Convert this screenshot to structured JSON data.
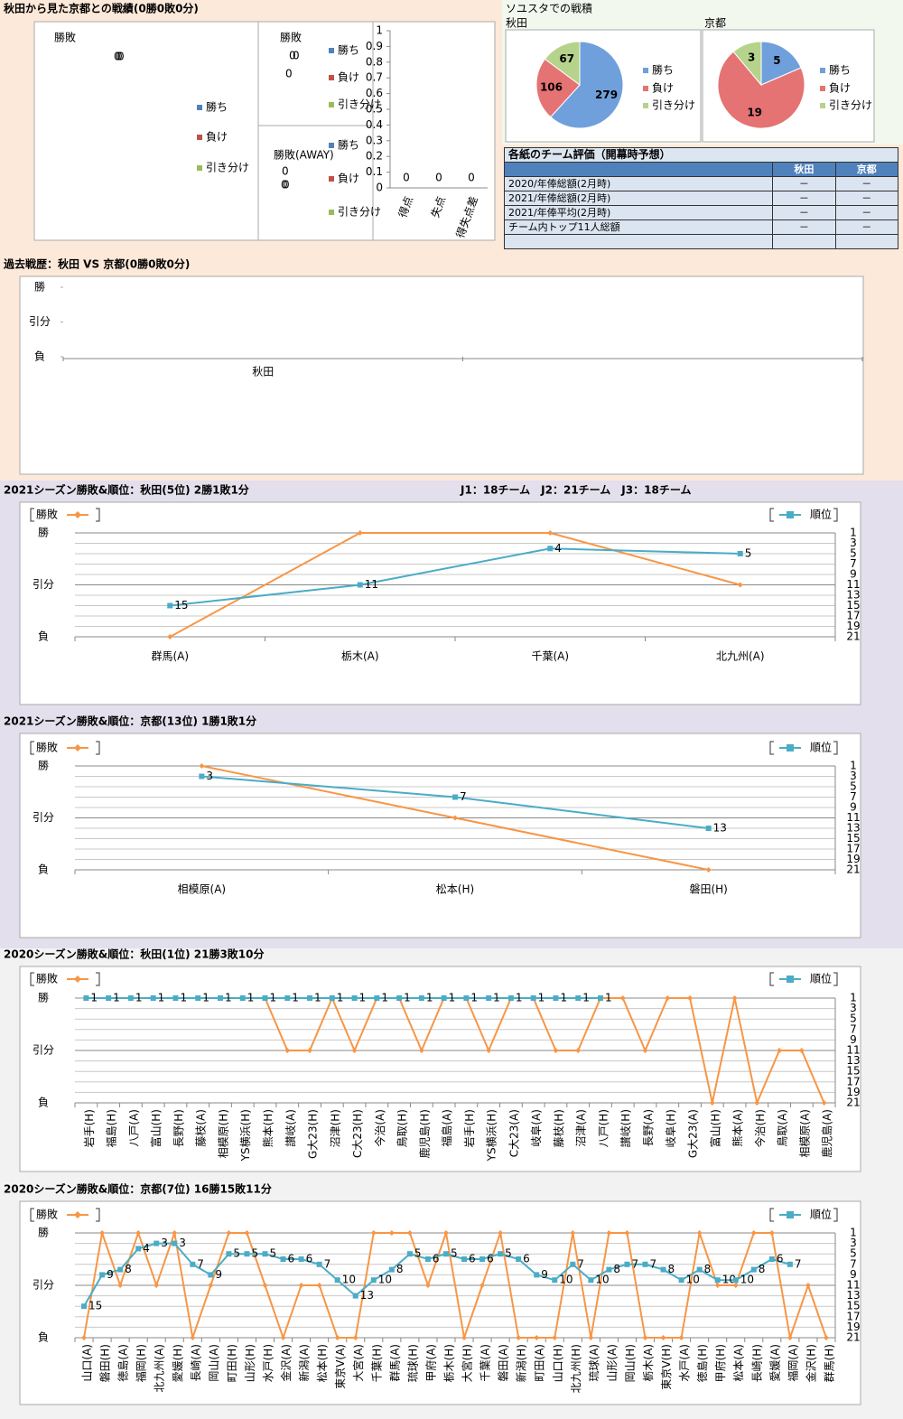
{
  "headings": {
    "main": "秋田から見た京都との戦績(0勝0敗0分)",
    "stadium": "ソユスタでの戦積",
    "teams": "J1：18チーム　J2：21チーム　J3：18チーム"
  },
  "table": {
    "title": "各紙のチーム評価（開幕時予想）",
    "columns": [
      "秋田",
      "京都"
    ],
    "rows": [
      [
        "2020/年俸総額(2月時)",
        "－",
        "－"
      ],
      [
        "2021/年俸総額(2月時)",
        "－",
        "－"
      ],
      [
        "2021/年俸平均(2月時)",
        "－",
        "－"
      ],
      [
        "チーム内トップ11人総額",
        "－",
        "－"
      ]
    ]
  },
  "chart_data": [
    {
      "type": "pie",
      "title": "勝敗",
      "categories": [
        "勝ち",
        "負け",
        "引き分け"
      ],
      "values": [
        0,
        0,
        0
      ],
      "colors": [
        "#4f81bd",
        "#c0504d",
        "#9bbb59"
      ],
      "legend": "right"
    },
    {
      "type": "pie",
      "title": "勝敗",
      "categories": [
        "勝ち",
        "負け",
        "引き分け"
      ],
      "values": [
        0,
        0,
        0
      ],
      "colors": [
        "#4f81bd",
        "#c0504d",
        "#9bbb59"
      ],
      "legend": "right"
    },
    {
      "type": "pie",
      "title": "勝敗(AWAY)",
      "categories": [
        "勝ち",
        "負け",
        "引き分け"
      ],
      "values": [
        0,
        0,
        0
      ],
      "colors": [
        "#4f81bd",
        "#c0504d",
        "#9bbb59"
      ],
      "legend": "right"
    },
    {
      "type": "bar",
      "categories": [
        "得点",
        "失点",
        "得失点差"
      ],
      "values": [
        0,
        0,
        0
      ],
      "color": "#4f81bd",
      "ylim": [
        0,
        1
      ],
      "yticks": [
        0,
        0.1,
        0.2,
        0.3,
        0.4,
        0.5,
        0.6,
        0.7,
        0.8,
        0.9,
        1
      ]
    },
    {
      "type": "pie",
      "title": "秋田",
      "categories": [
        "勝ち",
        "負け",
        "引き分け"
      ],
      "values": [
        279,
        106,
        67
      ],
      "colors": [
        "#6fa0dc",
        "#e57373",
        "#b5d38b"
      ],
      "legend": "right"
    },
    {
      "type": "pie",
      "title": "京都",
      "categories": [
        "勝ち",
        "負け",
        "引き分け"
      ],
      "values": [
        5,
        19,
        3
      ],
      "colors": [
        "#6fa0dc",
        "#e57373",
        "#b5d38b"
      ],
      "legend": "right"
    },
    {
      "type": "line",
      "title": "過去戦歴：秋田 VS 京都(0勝0敗0分)",
      "categories": [
        "秋田",
        null
      ],
      "series": [
        {
          "values": [
            null,
            null
          ]
        }
      ],
      "ylim": [
        -1,
        1
      ],
      "yticks": [
        {
          "value": 1,
          "label": "勝"
        },
        {
          "value": 0,
          "label": "引分"
        },
        {
          "value": -1,
          "label": "負"
        }
      ]
    },
    {
      "type": "line",
      "title": "2021シーズン勝敗&順位：秋田(5位) 2勝1敗1分",
      "categories": [
        "群馬(A)",
        "栃木(A)",
        "千葉(A)",
        "北九州(A)"
      ],
      "series": [
        {
          "name": "勝敗",
          "color": "#f79646",
          "marker": "diamond",
          "values": [
            -1,
            1,
            1,
            0
          ]
        },
        {
          "name": "順位",
          "color": "#4bacc6",
          "marker": "square",
          "data_labels": true,
          "axis": "y2",
          "values": [
            15,
            11,
            4,
            5
          ]
        }
      ],
      "ylim": [
        -1,
        1
      ],
      "yticks": [
        {
          "value": 1,
          "label": "勝"
        },
        {
          "value": 0,
          "label": "引分"
        },
        {
          "value": -1,
          "label": "負"
        }
      ],
      "y2lim": [
        21,
        1
      ],
      "y2ticks": [
        1,
        3,
        5,
        7,
        9,
        11,
        13,
        15,
        17,
        19,
        21
      ],
      "grid": true,
      "legend": "top"
    },
    {
      "type": "line",
      "title": "2021シーズン勝敗&順位：京都(13位) 1勝1敗1分",
      "categories": [
        "相模原(A)",
        "松本(H)",
        "磐田(H)"
      ],
      "series": [
        {
          "name": "勝敗",
          "color": "#f79646",
          "marker": "diamond",
          "values": [
            1,
            0,
            -1
          ]
        },
        {
          "name": "順位",
          "color": "#4bacc6",
          "marker": "square",
          "data_labels": true,
          "axis": "y2",
          "values": [
            3,
            7,
            13
          ]
        }
      ],
      "ylim": [
        -1,
        1
      ],
      "yticks": [
        {
          "value": 1,
          "label": "勝"
        },
        {
          "value": 0,
          "label": "引分"
        },
        {
          "value": -1,
          "label": "負"
        }
      ],
      "y2lim": [
        21,
        1
      ],
      "y2ticks": [
        1,
        3,
        5,
        7,
        9,
        11,
        13,
        15,
        17,
        19,
        21
      ],
      "grid": true,
      "legend": "top"
    },
    {
      "type": "line",
      "title": "2020シーズン勝敗&順位：秋田(1位) 21勝3敗10分",
      "categories": [
        "岩手(H)",
        "福島(H)",
        "八戸(A)",
        "富山(H)",
        "長野(H)",
        "藤枝(A)",
        "相模原(H)",
        "YS横浜(H)",
        "熊本(H)",
        "讃岐(A)",
        "G大23(H)",
        "沼津(H)",
        "C大23(H)",
        "今治(A)",
        "鳥取(H)",
        "鹿児島(H)",
        "福島(A)",
        "岩手(H)",
        "YS横浜(H)",
        "C大23(A)",
        "岐阜(A)",
        "藤枝(H)",
        "沼津(A)",
        "八戸(H)",
        "讃岐(H)",
        "長野(A)",
        "岐阜(H)",
        "G大23(A)",
        "富山(H)",
        "熊本(A)",
        "今治(H)",
        "鳥取(A)",
        "相模原(A)",
        "鹿児島(A)"
      ],
      "series": [
        {
          "name": "勝敗",
          "color": "#f79646",
          "marker": "diamond",
          "values": [
            1,
            1,
            1,
            1,
            1,
            1,
            1,
            1,
            1,
            0,
            0,
            1,
            0,
            1,
            1,
            0,
            1,
            1,
            0,
            1,
            1,
            0,
            0,
            1,
            1,
            0,
            1,
            1,
            -1,
            1,
            -1,
            0,
            0,
            -1
          ]
        },
        {
          "name": "順位",
          "color": "#4bacc6",
          "marker": "square",
          "data_labels": true,
          "axis": "y2",
          "values": [
            1,
            1,
            1,
            1,
            1,
            1,
            1,
            1,
            1,
            1,
            1,
            1,
            1,
            1,
            1,
            1,
            1,
            1,
            1,
            1,
            1,
            1,
            1,
            1,
            null,
            null,
            null,
            null,
            null,
            null,
            null,
            null,
            null,
            null
          ]
        }
      ],
      "ylim": [
        -1,
        1
      ],
      "yticks": [
        {
          "value": 1,
          "label": "勝"
        },
        {
          "value": 0,
          "label": "引分"
        },
        {
          "value": -1,
          "label": "負"
        }
      ],
      "y2lim": [
        21,
        1
      ],
      "y2ticks": [
        1,
        3,
        5,
        7,
        9,
        11,
        13,
        15,
        17,
        19,
        21
      ],
      "grid": true,
      "legend": "top"
    },
    {
      "type": "line",
      "title": "2020シーズン勝敗&順位：京都(7位) 16勝15敗11分",
      "categories": [
        "山口(A)",
        "磐田(H)",
        "徳島(A)",
        "福岡(H)",
        "北九州(A)",
        "愛媛(H)",
        "長崎(A)",
        "岡山(A)",
        "町田(H)",
        "山形(H)",
        "水戸(H)",
        "金沢(A)",
        "新潟(A)",
        "松本(H)",
        "東京V(A)",
        "大宮(A)",
        "千葉(H)",
        "群馬(A)",
        "琉球(H)",
        "甲府(A)",
        "栃木(H)",
        "大宮(H)",
        "千葉(A)",
        "磐田(A)",
        "新潟(H)",
        "町田(A)",
        "山口(H)",
        "北九州(H)",
        "琉球(A)",
        "山形(A)",
        "岡山(H)",
        "栃木(A)",
        "東京V(H)",
        "水戸(A)",
        "徳島(H)",
        "甲府(H)",
        "松本(A)",
        "長崎(H)",
        "愛媛(A)",
        "福岡(A)",
        "金沢(H)",
        "群馬(H)"
      ],
      "series": [
        {
          "name": "勝敗",
          "color": "#f79646",
          "marker": "diamond",
          "values": [
            -1,
            1,
            0,
            1,
            0,
            1,
            -1,
            0,
            1,
            1,
            0,
            -1,
            0,
            0,
            -1,
            -1,
            1,
            1,
            1,
            0,
            1,
            -1,
            0,
            1,
            -1,
            -1,
            -1,
            1,
            -1,
            1,
            1,
            -1,
            -1,
            -1,
            1,
            0,
            0,
            1,
            1,
            -1,
            0,
            -1
          ]
        },
        {
          "name": "順位",
          "color": "#4bacc6",
          "marker": "square",
          "data_labels": true,
          "axis": "y2",
          "values": [
            15,
            9,
            8,
            4,
            3,
            3,
            7,
            9,
            5,
            5,
            5,
            6,
            6,
            7,
            10,
            13,
            10,
            8,
            5,
            6,
            5,
            6,
            6,
            5,
            6,
            9,
            10,
            7,
            10,
            8,
            7,
            7,
            8,
            10,
            8,
            10,
            10,
            8,
            6,
            7,
            null,
            null
          ]
        }
      ],
      "ylim": [
        -1,
        1
      ],
      "yticks": [
        {
          "value": 1,
          "label": "勝"
        },
        {
          "value": 0,
          "label": "引分"
        },
        {
          "value": -1,
          "label": "負"
        }
      ],
      "y2lim": [
        21,
        1
      ],
      "y2ticks": [
        1,
        3,
        5,
        7,
        9,
        11,
        13,
        15,
        17,
        19,
        21
      ],
      "grid": true,
      "legend": "top"
    }
  ]
}
